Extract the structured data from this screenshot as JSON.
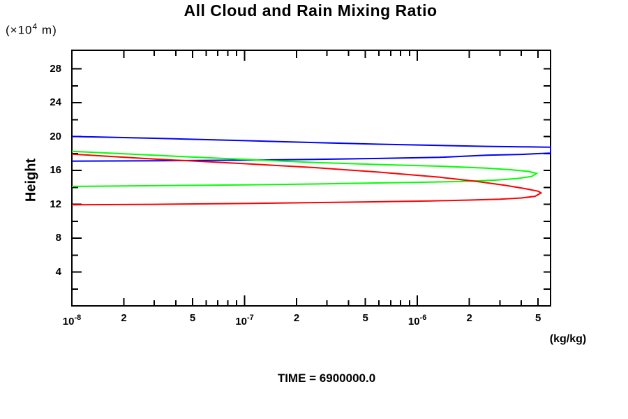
{
  "chart_data": {
    "type": "line",
    "title": "All Cloud and Rain Mixing Ratio",
    "annotation": "TIME = 6900000.0",
    "x_axis": {
      "scale": "log",
      "min": 1e-08,
      "max": 5.9e-06,
      "unit_label": "(kg/kg)",
      "ticks": [
        {
          "v": 1e-08,
          "t": "decade",
          "base": "10",
          "exp": "-8"
        },
        {
          "v": 2e-08,
          "t": "labeled",
          "label": "2"
        },
        {
          "v": 3e-08,
          "t": "minor"
        },
        {
          "v": 4e-08,
          "t": "minor"
        },
        {
          "v": 5e-08,
          "t": "labeled",
          "label": "5"
        },
        {
          "v": 6e-08,
          "t": "minor"
        },
        {
          "v": 7e-08,
          "t": "minor"
        },
        {
          "v": 8e-08,
          "t": "minor"
        },
        {
          "v": 9e-08,
          "t": "minor"
        },
        {
          "v": 1e-07,
          "t": "decade",
          "base": "10",
          "exp": "-7"
        },
        {
          "v": 2e-07,
          "t": "labeled",
          "label": "2"
        },
        {
          "v": 3e-07,
          "t": "minor"
        },
        {
          "v": 4e-07,
          "t": "minor"
        },
        {
          "v": 5e-07,
          "t": "labeled",
          "label": "5"
        },
        {
          "v": 6e-07,
          "t": "minor"
        },
        {
          "v": 7e-07,
          "t": "minor"
        },
        {
          "v": 8e-07,
          "t": "minor"
        },
        {
          "v": 9e-07,
          "t": "minor"
        },
        {
          "v": 1e-06,
          "t": "decade",
          "base": "10",
          "exp": "-6"
        },
        {
          "v": 2e-06,
          "t": "labeled",
          "label": "2"
        },
        {
          "v": 3e-06,
          "t": "minor"
        },
        {
          "v": 4e-06,
          "t": "minor"
        },
        {
          "v": 5e-06,
          "t": "labeled",
          "label": "5"
        }
      ]
    },
    "y_axis": {
      "title": "Height",
      "unit_prefix": "(×10",
      "unit_sup": "4",
      "unit_suffix": " m)",
      "min": 0,
      "max": 30.2,
      "major_ticks": [
        4,
        8,
        12,
        16,
        20,
        24,
        28
      ],
      "minor_ticks": [
        2,
        6,
        10,
        14,
        18,
        22,
        26
      ],
      "right_ticks": [
        2,
        4,
        6,
        8,
        10,
        12,
        14,
        16,
        18,
        20,
        22,
        24,
        26,
        28
      ]
    },
    "series": [
      {
        "name": "blue-curve",
        "color": "#0000ff",
        "points": [
          [
            1e-08,
            20.02
          ],
          [
            3e-08,
            19.8
          ],
          [
            1e-07,
            19.52
          ],
          [
            2.5e-07,
            19.3
          ],
          [
            6e-07,
            19.1
          ],
          [
            1.35e-06,
            18.95
          ],
          [
            2.5e-06,
            18.85
          ],
          [
            4e-06,
            18.8
          ],
          [
            5.9e-06,
            18.75
          ],
          [
            5.9e-06,
            18.05
          ],
          [
            4e-06,
            17.9
          ],
          [
            2.5e-06,
            17.8
          ],
          [
            1.35e-06,
            17.55
          ],
          [
            6e-07,
            17.42
          ],
          [
            2.5e-07,
            17.3
          ],
          [
            1e-07,
            17.22
          ],
          [
            3e-08,
            17.15
          ],
          [
            1e-08,
            17.1
          ]
        ]
      },
      {
        "name": "green-curve",
        "color": "#00ff00",
        "points": [
          [
            1e-08,
            18.26
          ],
          [
            3e-08,
            17.8
          ],
          [
            1e-07,
            17.3
          ],
          [
            2.5e-07,
            16.95
          ],
          [
            6e-07,
            16.7
          ],
          [
            1.35e-06,
            16.5
          ],
          [
            2.5e-06,
            16.28
          ],
          [
            3.5e-06,
            16.08
          ],
          [
            4.4e-06,
            15.88
          ],
          [
            4.9e-06,
            15.65
          ],
          [
            4.6e-06,
            15.3
          ],
          [
            3.8e-06,
            15.05
          ],
          [
            2.8e-06,
            14.85
          ],
          [
            1.8e-06,
            14.7
          ],
          [
            1e-06,
            14.6
          ],
          [
            5e-07,
            14.5
          ],
          [
            2.5e-07,
            14.4
          ],
          [
            1e-07,
            14.3
          ],
          [
            3e-08,
            14.2
          ],
          [
            1e-08,
            14.12
          ]
        ]
      },
      {
        "name": "red-curve",
        "color": "#ff0000",
        "points": [
          [
            1e-08,
            17.93
          ],
          [
            3e-08,
            17.35
          ],
          [
            1e-07,
            16.8
          ],
          [
            2.5e-07,
            16.35
          ],
          [
            6e-07,
            15.8
          ],
          [
            1.35e-06,
            15.2
          ],
          [
            2.2e-06,
            14.7
          ],
          [
            3.2e-06,
            14.25
          ],
          [
            4.2e-06,
            13.85
          ],
          [
            5e-06,
            13.55
          ],
          [
            5.2e-06,
            13.35
          ],
          [
            4.8e-06,
            12.95
          ],
          [
            4e-06,
            12.75
          ],
          [
            3e-06,
            12.6
          ],
          [
            2e-06,
            12.5
          ],
          [
            1.2e-06,
            12.4
          ],
          [
            6e-07,
            12.3
          ],
          [
            2.5e-07,
            12.2
          ],
          [
            1e-07,
            12.1
          ],
          [
            3e-08,
            12.0
          ],
          [
            1e-08,
            11.94
          ]
        ]
      }
    ],
    "layout": {
      "grid": false,
      "legend": "none",
      "frame_color": "#000000",
      "background_color": "#ffffff"
    }
  }
}
